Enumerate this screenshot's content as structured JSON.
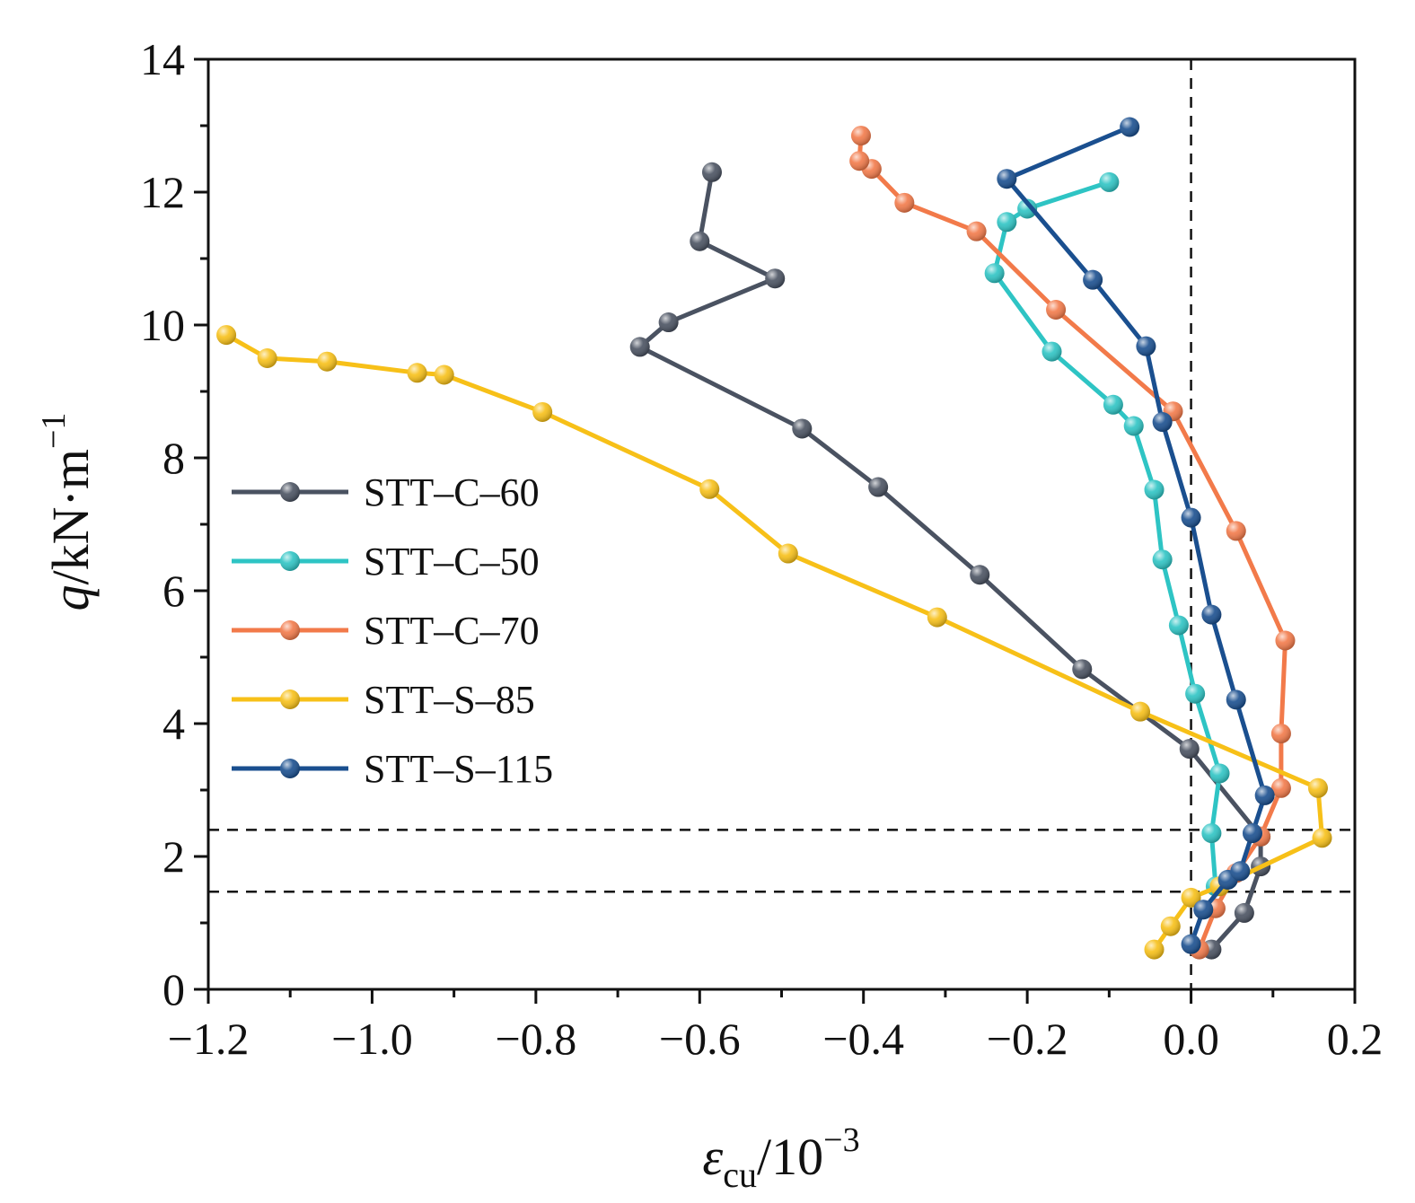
{
  "chart_data": {
    "type": "line",
    "title": "",
    "xlabel": {
      "symbol": "ε",
      "subscript": "cu",
      "unit": "/10",
      "exponent": "−3"
    },
    "ylabel": {
      "symbol": "q",
      "unit": "/kN·m",
      "exponent": "−1"
    },
    "xlim": [
      -1.2,
      0.2
    ],
    "ylim": [
      0,
      14
    ],
    "xticks": [
      -1.2,
      -1.0,
      -0.8,
      -0.6,
      -0.4,
      -0.2,
      0.0,
      0.2
    ],
    "xtick_labels": [
      "−1.2",
      "−1.0",
      "−0.8",
      "−0.6",
      "−0.4",
      "−0.2",
      "0.0",
      "0.2"
    ],
    "yticks": [
      0,
      2,
      4,
      6,
      8,
      10,
      12,
      14
    ],
    "ytick_labels": [
      "0",
      "2",
      "4",
      "6",
      "8",
      "10",
      "12",
      "14"
    ],
    "grid": false,
    "legend_position": "left-middle",
    "reference_lines": [
      {
        "orientation": "vertical",
        "x": 0.0,
        "style": "dashed"
      },
      {
        "orientation": "horizontal",
        "y": 2.4,
        "style": "dashed"
      },
      {
        "orientation": "horizontal",
        "y": 1.47,
        "style": "dashed"
      }
    ],
    "series": [
      {
        "name": "STT–C–60",
        "color": "#4a5261",
        "x": [
          0.025,
          0.065,
          0.085,
          0.085,
          -0.002,
          -0.133,
          -0.258,
          -0.382,
          -0.475,
          -0.673,
          -0.638,
          -0.508,
          -0.6,
          -0.585
        ],
        "y": [
          0.6,
          1.15,
          1.85,
          2.3,
          3.62,
          4.82,
          6.24,
          7.56,
          8.44,
          9.67,
          10.04,
          10.7,
          11.26,
          12.3
        ]
      },
      {
        "name": "STT–C–50",
        "color": "#2ec4c4",
        "x": [
          0.03,
          0.025,
          0.035,
          0.005,
          -0.015,
          -0.035,
          -0.045,
          -0.07,
          -0.095,
          -0.17,
          -0.24,
          -0.225,
          -0.2,
          -0.1
        ],
        "y": [
          1.55,
          2.35,
          3.25,
          4.45,
          5.48,
          6.47,
          7.52,
          8.48,
          8.8,
          9.6,
          10.78,
          11.55,
          11.75,
          12.15
        ]
      },
      {
        "name": "STT–C–70",
        "color": "#f27a4a",
        "x": [
          0.01,
          0.03,
          0.055,
          0.085,
          0.11,
          0.11,
          0.115,
          0.055,
          -0.022,
          -0.165,
          -0.262,
          -0.35,
          -0.39,
          -0.405,
          -0.403
        ],
        "y": [
          0.6,
          1.22,
          1.75,
          2.3,
          3.03,
          3.85,
          5.25,
          6.9,
          8.7,
          10.23,
          11.41,
          11.84,
          12.35,
          12.47,
          12.85
        ]
      },
      {
        "name": "STT–S–85",
        "color": "#f7c018",
        "x": [
          -0.045,
          -0.025,
          0.0,
          0.035,
          0.16,
          0.155,
          -0.062,
          -0.31,
          -0.492,
          -0.588,
          -0.792,
          -0.912,
          -0.945,
          -1.055,
          -1.128,
          -1.178
        ],
        "y": [
          0.6,
          0.95,
          1.38,
          1.55,
          2.28,
          3.03,
          4.18,
          5.6,
          6.56,
          7.53,
          8.69,
          9.25,
          9.28,
          9.45,
          9.5,
          9.85
        ]
      },
      {
        "name": "STT–S–115",
        "color": "#1a4f8f",
        "x": [
          0.0,
          0.015,
          0.045,
          0.06,
          0.075,
          0.09,
          0.055,
          0.025,
          0.0,
          -0.035,
          -0.055,
          -0.12,
          -0.225,
          -0.075
        ],
        "y": [
          0.68,
          1.2,
          1.65,
          1.78,
          2.35,
          2.92,
          4.36,
          5.64,
          7.1,
          8.54,
          9.68,
          10.68,
          12.2,
          12.98
        ]
      }
    ]
  }
}
